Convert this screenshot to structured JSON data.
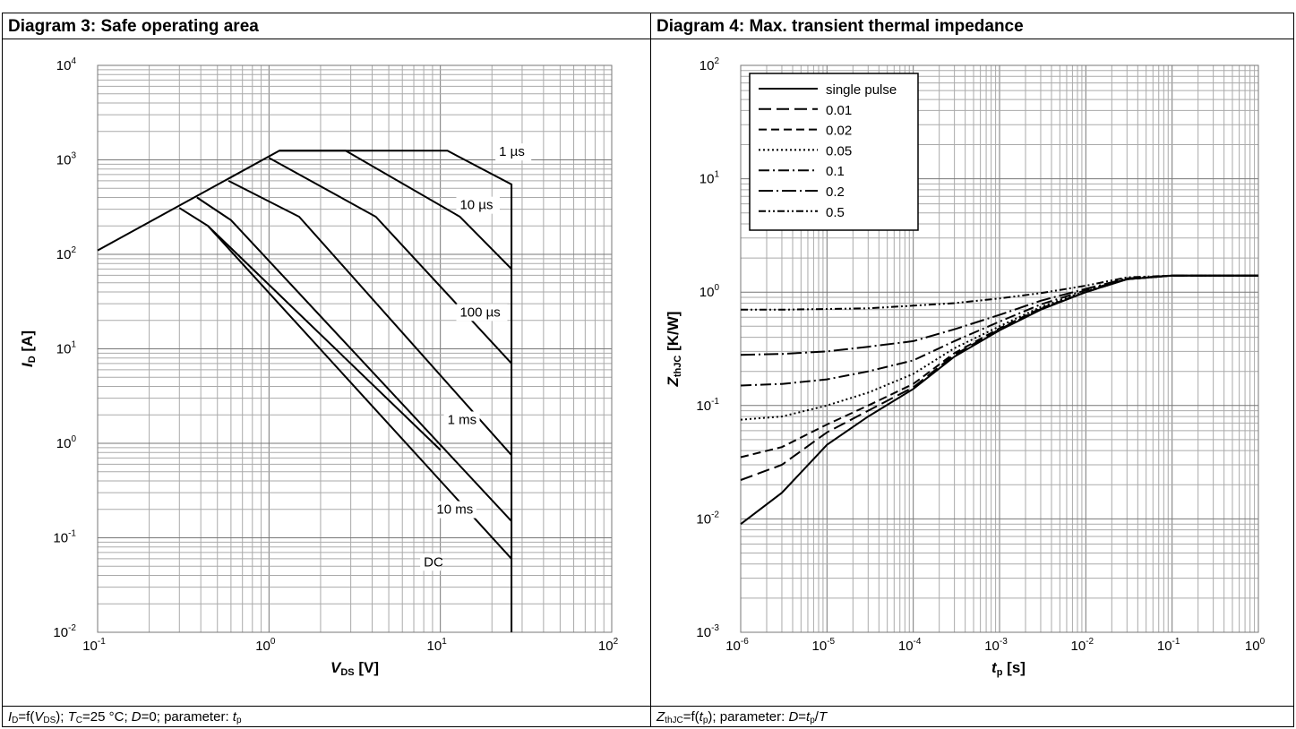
{
  "diagram3": {
    "title": "Diagram 3: Safe operating area",
    "caption": {
      "id": "I",
      "id_sub": "D",
      "eq": "=f(",
      "v": "V",
      "v_sub": "DS",
      "p1": "); ",
      "t": "T",
      "t_sub": "C",
      "p2": "=25 °C; ",
      "d": "D",
      "p3": "=0; parameter: ",
      "tp": "t",
      "tp_sub": "p"
    }
  },
  "diagram4": {
    "title": "Diagram 4: Max. transient thermal impedance",
    "caption": {
      "z": "Z",
      "z_sub": "thJC",
      "eq": "=f(",
      "t": "t",
      "t_sub": "p",
      "p1": "); parameter: ",
      "d": "D",
      "eq2": "=",
      "t2": "t",
      "t2_sub": "p",
      "slash": "/",
      "T": "T"
    }
  },
  "chart_data": [
    {
      "type": "line",
      "title": "Diagram 3: Safe operating area",
      "xlabel": {
        "main": "V",
        "sub": "DS",
        "unit": " [V]"
      },
      "ylabel": {
        "main": "I",
        "sub": "D",
        "unit": " [A]"
      },
      "xscale": "log",
      "yscale": "log",
      "xlim": [
        0.1,
        100
      ],
      "ylim": [
        0.01,
        10000
      ],
      "x_ticks": [
        "10",
        "10",
        "10",
        "10"
      ],
      "x_tick_exp": [
        "-1",
        "0",
        "1",
        "2"
      ],
      "y_ticks": [
        "10",
        "10",
        "10",
        "10",
        "10",
        "10",
        "10"
      ],
      "y_tick_exp": [
        "-2",
        "-1",
        "0",
        "1",
        "2",
        "3",
        "4"
      ],
      "grid": true,
      "series": [
        {
          "name": "1 µs",
          "x": [
            0.1,
            1.15,
            11,
            26,
            26
          ],
          "y": [
            110,
            1250,
            1250,
            550,
            0.01
          ]
        },
        {
          "name": "10 µs",
          "x": [
            1.15,
            2.8,
            13,
            26
          ],
          "y": [
            1250,
            1250,
            250,
            70
          ]
        },
        {
          "name": "100 µs",
          "x": [
            1.0,
            4.2,
            26
          ],
          "y": [
            1050,
            250,
            7
          ]
        },
        {
          "name": "1 ms",
          "x": [
            0.58,
            1.5,
            26
          ],
          "y": [
            600,
            250,
            0.75
          ]
        },
        {
          "name": "10 ms",
          "x": [
            0.38,
            0.6,
            26
          ],
          "y": [
            400,
            230,
            0.15
          ]
        },
        {
          "name": "DC",
          "x": [
            0.3,
            0.44,
            26
          ],
          "y": [
            310,
            200,
            0.06
          ]
        },
        {
          "name": "DC",
          "x": [
            0.44,
            10
          ],
          "y": [
            200,
            0.85
          ]
        }
      ],
      "annotations": [
        "1 µs",
        "10 µs",
        "100 µs",
        "1 ms",
        "10 ms",
        "DC"
      ]
    },
    {
      "type": "line",
      "title": "Diagram 4: Max. transient thermal impedance",
      "xlabel": {
        "main": "t",
        "sub": "p",
        "unit": " [s]"
      },
      "ylabel": {
        "main": "Z",
        "sub": "thJC",
        "unit": " [K/W]"
      },
      "xscale": "log",
      "yscale": "log",
      "xlim": [
        1e-06,
        1
      ],
      "ylim": [
        0.001,
        100
      ],
      "x_ticks": [
        "10",
        "10",
        "10",
        "10",
        "10",
        "10",
        "10"
      ],
      "x_tick_exp": [
        "-6",
        "-5",
        "-4",
        "-3",
        "-2",
        "-1",
        "0"
      ],
      "y_ticks": [
        "10",
        "10",
        "10",
        "10",
        "10",
        "10"
      ],
      "y_tick_exp": [
        "-3",
        "-2",
        "-1",
        "0",
        "1",
        "2"
      ],
      "grid": true,
      "legend_position": "top-left",
      "series": [
        {
          "name": "single pulse",
          "dash": "none",
          "x": [
            1e-06,
            3e-06,
            1e-05,
            3e-05,
            0.0001,
            0.0003,
            0.001,
            0.003,
            0.01,
            0.03,
            0.1,
            1
          ],
          "y": [
            0.009,
            0.017,
            0.045,
            0.08,
            0.14,
            0.27,
            0.46,
            0.7,
            1.0,
            1.3,
            1.4,
            1.4
          ]
        },
        {
          "name": "0.01",
          "dash": "14,6",
          "x": [
            1e-06,
            3e-06,
            1e-05,
            3e-05,
            0.0001,
            0.0003,
            0.001,
            0.003,
            0.01,
            0.03,
            0.1,
            1
          ],
          "y": [
            0.022,
            0.03,
            0.058,
            0.09,
            0.145,
            0.28,
            0.47,
            0.71,
            1.0,
            1.3,
            1.4,
            1.4
          ]
        },
        {
          "name": "0.02",
          "dash": "9,5",
          "x": [
            1e-06,
            3e-06,
            1e-05,
            3e-05,
            0.0001,
            0.0003,
            0.001,
            0.003,
            0.01,
            0.03,
            0.1,
            1
          ],
          "y": [
            0.035,
            0.043,
            0.068,
            0.1,
            0.155,
            0.29,
            0.48,
            0.72,
            1.0,
            1.3,
            1.4,
            1.4
          ]
        },
        {
          "name": "0.05",
          "dash": "2,3",
          "x": [
            1e-06,
            3e-06,
            1e-05,
            3e-05,
            0.0001,
            0.0003,
            0.001,
            0.003,
            0.01,
            0.03,
            0.1,
            1
          ],
          "y": [
            0.075,
            0.08,
            0.1,
            0.13,
            0.19,
            0.32,
            0.5,
            0.74,
            1.02,
            1.3,
            1.4,
            1.4
          ]
        },
        {
          "name": "0.1",
          "dash": "12,4,2,4",
          "x": [
            1e-06,
            3e-06,
            1e-05,
            3e-05,
            0.0001,
            0.0003,
            0.001,
            0.003,
            0.01,
            0.03,
            0.1,
            1
          ],
          "y": [
            0.15,
            0.155,
            0.17,
            0.2,
            0.25,
            0.37,
            0.55,
            0.78,
            1.04,
            1.3,
            1.4,
            1.4
          ]
        },
        {
          "name": "0.2",
          "dash": "16,4,2,4",
          "x": [
            1e-06,
            3e-06,
            1e-05,
            3e-05,
            0.0001,
            0.0003,
            0.001,
            0.003,
            0.01,
            0.03,
            0.1,
            1
          ],
          "y": [
            0.28,
            0.285,
            0.3,
            0.33,
            0.37,
            0.47,
            0.63,
            0.84,
            1.07,
            1.32,
            1.4,
            1.4
          ]
        },
        {
          "name": "0.5",
          "dash": "8,3,2,3,2,3",
          "x": [
            1e-06,
            3e-06,
            1e-05,
            3e-05,
            0.0001,
            0.0003,
            0.001,
            0.003,
            0.01,
            0.03,
            0.1,
            1
          ],
          "y": [
            0.7,
            0.7,
            0.71,
            0.72,
            0.76,
            0.8,
            0.88,
            0.98,
            1.14,
            1.35,
            1.4,
            1.4
          ]
        }
      ]
    }
  ]
}
